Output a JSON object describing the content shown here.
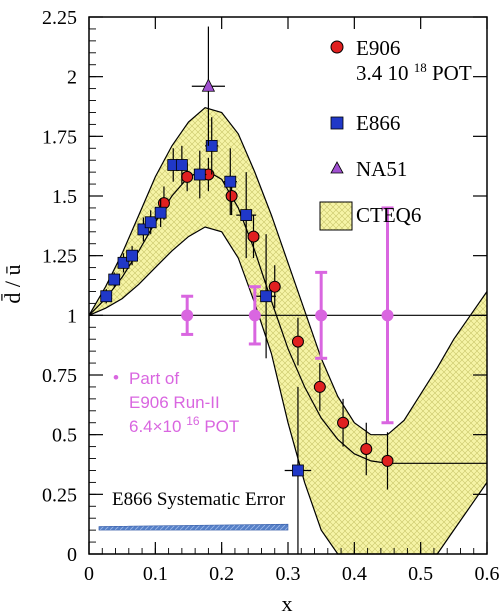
{
  "chart_data": {
    "type": "scatter",
    "xlabel": "x",
    "ylabel": "d̄ / ū",
    "xlim": [
      0,
      0.6
    ],
    "ylim": [
      0,
      2.25
    ],
    "x_ticks": [
      "0",
      "0.1",
      "0.2",
      "0.3",
      "0.4",
      "0.5",
      "0.6"
    ],
    "x_tick_values": [
      0,
      0.1,
      0.2,
      0.3,
      0.4,
      0.5,
      0.6
    ],
    "y_ticks": [
      "0",
      "0.25",
      "0.5",
      "0.75",
      "1",
      "1.25",
      "1.5",
      "1.75",
      "2",
      "2.25"
    ],
    "y_tick_values": [
      0,
      0.25,
      0.5,
      0.75,
      1,
      1.25,
      1.5,
      1.75,
      2,
      2.25
    ],
    "reference_line_y": 1,
    "series": [
      {
        "name": "E906",
        "name_line2_prefix": "3.4 10",
        "name_line2_sup": "18",
        "name_line2_suffix": " POT",
        "marker": "circle",
        "color": "#e02020",
        "points": [
          {
            "x": 0.113,
            "y": 1.47,
            "yerr": 0.07
          },
          {
            "x": 0.148,
            "y": 1.58,
            "yerr": 0.06
          },
          {
            "x": 0.18,
            "y": 1.59,
            "yerr": 0.07
          },
          {
            "x": 0.215,
            "y": 1.5,
            "yerr": 0.08
          },
          {
            "x": 0.248,
            "y": 1.33,
            "yerr": 0.09
          },
          {
            "x": 0.28,
            "y": 1.12,
            "yerr": 0.09
          },
          {
            "x": 0.315,
            "y": 0.89,
            "yerr": 0.1
          },
          {
            "x": 0.348,
            "y": 0.7,
            "yerr": 0.1
          },
          {
            "x": 0.383,
            "y": 0.55,
            "yerr": 0.1
          },
          {
            "x": 0.418,
            "y": 0.44,
            "yerr": 0.11
          },
          {
            "x": 0.45,
            "y": 0.39,
            "yerr": 0.12
          }
        ]
      },
      {
        "name": "E866",
        "marker": "square",
        "color": "#2038c8",
        "points": [
          {
            "x": 0.026,
            "y": 1.08,
            "yerr": 0.03
          },
          {
            "x": 0.038,
            "y": 1.15,
            "yerr": 0.03
          },
          {
            "x": 0.052,
            "y": 1.22,
            "yerr": 0.04
          },
          {
            "x": 0.065,
            "y": 1.25,
            "yerr": 0.04
          },
          {
            "x": 0.082,
            "y": 1.36,
            "yerr": 0.05
          },
          {
            "x": 0.093,
            "y": 1.39,
            "yerr": 0.05
          },
          {
            "x": 0.108,
            "y": 1.43,
            "yerr": 0.06
          },
          {
            "x": 0.127,
            "y": 1.63,
            "yerr": 0.07
          },
          {
            "x": 0.14,
            "y": 1.63,
            "yerr": 0.08
          },
          {
            "x": 0.167,
            "y": 1.59,
            "yerr": 0.1,
            "xerr": 0.01
          },
          {
            "x": 0.185,
            "y": 1.71,
            "yerr": 0.12,
            "xerr": 0.01
          },
          {
            "x": 0.213,
            "y": 1.56,
            "yerr": 0.14,
            "xerr": 0.01
          },
          {
            "x": 0.237,
            "y": 1.42,
            "yerr": 0.18,
            "xerr": 0.015
          },
          {
            "x": 0.267,
            "y": 1.08,
            "yerr": 0.26,
            "xerr": 0.015
          },
          {
            "x": 0.315,
            "y": 0.35,
            "yerr": 0.35,
            "xerr": 0.02
          }
        ]
      },
      {
        "name": "NA51",
        "marker": "triangle",
        "color": "#a050d0",
        "points": [
          {
            "x": 0.18,
            "y": 1.96,
            "yerr": 0.25,
            "xerr": 0.025
          }
        ]
      },
      {
        "name": "CTEQ6",
        "marker": "band",
        "color": "#f4f0a0"
      },
      {
        "name": "Part of E906 Run-II",
        "marker": "circle",
        "color": "#d966e0",
        "points": [
          {
            "x": 0.148,
            "y": 1.0,
            "yerr": 0.08
          },
          {
            "x": 0.25,
            "y": 1.0,
            "yerr": 0.12
          },
          {
            "x": 0.35,
            "y": 1.0,
            "yerr": 0.18
          },
          {
            "x": 0.45,
            "y": 1.0,
            "yerr": 0.45
          }
        ]
      }
    ],
    "cteq6_band": {
      "x": [
        0,
        0.025,
        0.05,
        0.075,
        0.1,
        0.125,
        0.15,
        0.175,
        0.2,
        0.225,
        0.25,
        0.275,
        0.3,
        0.325,
        0.35,
        0.375,
        0.4,
        0.425,
        0.45,
        0.475,
        0.5,
        0.525,
        0.55,
        0.575,
        0.6
      ],
      "central": [
        1.0,
        1.07,
        1.16,
        1.27,
        1.39,
        1.5,
        1.58,
        1.61,
        1.57,
        1.45,
        1.27,
        1.06,
        0.86,
        0.7,
        0.57,
        0.48,
        0.42,
        0.39,
        0.38,
        0.38,
        0.38,
        0.38,
        0.38,
        0.38,
        0.38
      ],
      "upper": [
        1.0,
        1.12,
        1.26,
        1.42,
        1.58,
        1.71,
        1.81,
        1.87,
        1.85,
        1.76,
        1.6,
        1.42,
        1.22,
        1.02,
        0.82,
        0.66,
        0.55,
        0.5,
        0.5,
        0.56,
        0.67,
        0.78,
        0.9,
        1.0,
        1.1
      ],
      "lower": [
        1.0,
        1.03,
        1.07,
        1.13,
        1.2,
        1.27,
        1.33,
        1.37,
        1.35,
        1.24,
        1.05,
        0.84,
        0.55,
        0.3,
        0.1,
        -0.05,
        -0.15,
        -0.2,
        -0.22,
        -0.2,
        -0.1,
        0.0,
        0.1,
        0.2,
        0.3
      ]
    },
    "systematic_error_band": {
      "label": "E866 Systematic Error",
      "color": "#5580c8",
      "x": [
        0.015,
        0.3
      ],
      "y_low": 0.1,
      "y_high": [
        0.115,
        0.125
      ]
    },
    "annotation": {
      "bullet": "•",
      "lines": [
        "Part of",
        "E906 Run-II",
        "6.4×10",
        "16",
        " POT"
      ]
    },
    "legend_placement": "top-right",
    "grid": false
  }
}
